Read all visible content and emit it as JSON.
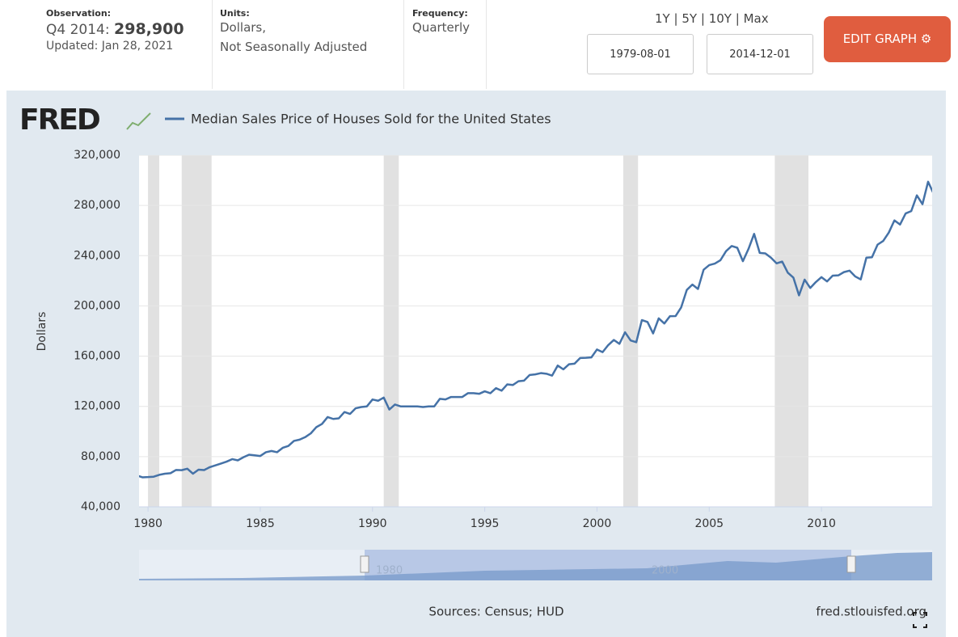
{
  "header": {
    "observation": {
      "label": "Observation:",
      "period": "Q4 2014:",
      "value": "298,900",
      "updated": "Updated: Jan 28, 2021"
    },
    "units": {
      "label": "Units:",
      "lines": [
        "Dollars,",
        "Not Seasonally Adjusted"
      ]
    },
    "frequency": {
      "label": "Frequency:",
      "value": "Quarterly"
    },
    "ranges": [
      "1Y",
      "5Y",
      "10Y",
      "Max"
    ],
    "separator": "|",
    "start_date": "1979-08-01",
    "end_date": "2014-12-01",
    "edit_button": "EDIT GRAPH"
  },
  "logo": "FRED",
  "chart_data": {
    "type": "line",
    "ylabel": "Dollars",
    "color": "#4572a7",
    "grid": true,
    "xlim": [
      1979.6,
      2014.93
    ],
    "xticks": [
      1980,
      1985,
      1990,
      1995,
      2000,
      2005,
      2010
    ],
    "ylim": [
      40000,
      320000
    ],
    "yticks": [
      {
        "value": 40000,
        "label": "40,000"
      },
      {
        "value": 80000,
        "label": "80,000"
      },
      {
        "value": 120000,
        "label": "120,000"
      },
      {
        "value": 160000,
        "label": "160,000"
      },
      {
        "value": 200000,
        "label": "200,000"
      },
      {
        "value": 240000,
        "label": "240,000"
      },
      {
        "value": 280000,
        "label": "280,000"
      },
      {
        "value": 320000,
        "label": "320,000"
      }
    ],
    "recessions": [
      [
        1980.0,
        1980.5
      ],
      [
        1981.5,
        1982.83
      ],
      [
        1990.5,
        1991.17
      ],
      [
        2001.17,
        2001.83
      ],
      [
        2007.92,
        2009.42
      ]
    ],
    "x": [
      1979.5,
      1979.75,
      1980,
      1980.25,
      1980.5,
      1980.75,
      1981,
      1981.25,
      1981.5,
      1981.75,
      1982,
      1982.25,
      1982.5,
      1982.75,
      1983,
      1983.25,
      1983.5,
      1983.75,
      1984,
      1984.25,
      1984.5,
      1984.75,
      1985,
      1985.25,
      1985.5,
      1985.75,
      1986,
      1986.25,
      1986.5,
      1986.75,
      1987,
      1987.25,
      1987.5,
      1987.75,
      1988,
      1988.25,
      1988.5,
      1988.75,
      1989,
      1989.25,
      1989.5,
      1989.75,
      1990,
      1990.25,
      1990.5,
      1990.75,
      1991,
      1991.25,
      1991.5,
      1991.75,
      1992,
      1992.25,
      1992.5,
      1992.75,
      1993,
      1993.25,
      1993.5,
      1993.75,
      1994,
      1994.25,
      1994.5,
      1994.75,
      1995,
      1995.25,
      1995.5,
      1995.75,
      1996,
      1996.25,
      1996.5,
      1996.75,
      1997,
      1997.25,
      1997.5,
      1997.75,
      1998,
      1998.25,
      1998.5,
      1998.75,
      1999,
      1999.25,
      1999.5,
      1999.75,
      2000,
      2000.25,
      2000.5,
      2000.75,
      2001,
      2001.25,
      2001.5,
      2001.75,
      2002,
      2002.25,
      2002.5,
      2002.75,
      2003,
      2003.25,
      2003.5,
      2003.75,
      2004,
      2004.25,
      2004.5,
      2004.75,
      2005,
      2005.25,
      2005.5,
      2005.75,
      2006,
      2006.25,
      2006.5,
      2006.75,
      2007,
      2007.25,
      2007.5,
      2007.75,
      2008,
      2008.25,
      2008.5,
      2008.75,
      2009,
      2009.25,
      2009.5,
      2009.75,
      2010,
      2010.25,
      2010.5,
      2010.75,
      2011,
      2011.25,
      2011.5,
      2011.75,
      2012,
      2012.25,
      2012.5,
      2012.75,
      2013,
      2013.25,
      2013.5,
      2013.75,
      2014,
      2014.25,
      2014.5,
      2014.75,
      2015
    ],
    "series": [
      {
        "name": "Median Sales Price of Houses Sold for the United States",
        "color": "#4572a7",
        "values": [
          65000,
          63500,
          63700,
          64000,
          65500,
          66400,
          66800,
          69400,
          69200,
          70400,
          66400,
          69600,
          69300,
          71600,
          73000,
          74500,
          76000,
          78000,
          77000,
          79500,
          81500,
          81000,
          80500,
          83500,
          84500,
          83500,
          87000,
          88500,
          92500,
          93500,
          95500,
          98500,
          103500,
          106000,
          111500,
          110000,
          110500,
          115500,
          114000,
          118500,
          119500,
          120000,
          125500,
          124500,
          127000,
          117500,
          121500,
          120000,
          120000,
          120000,
          120000,
          119500,
          120000,
          120000,
          126000,
          125500,
          127500,
          127500,
          127500,
          130500,
          130500,
          130000,
          132000,
          130500,
          134500,
          132500,
          137500,
          137000,
          140000,
          140500,
          145000,
          145500,
          146500,
          146000,
          144500,
          152500,
          149500,
          153500,
          154000,
          158500,
          158700,
          159000,
          165300,
          163200,
          168800,
          172900,
          169800,
          179000,
          172500,
          171100,
          188700,
          187200,
          178100,
          190100,
          186000,
          191800,
          191900,
          198800,
          212700,
          217000,
          213500,
          228800,
          232500,
          233700,
          236400,
          243600,
          247700,
          246300,
          235600,
          245400,
          257400,
          242200,
          241800,
          238400,
          233900,
          235300,
          226500,
          222500,
          208400,
          220900,
          214300,
          219000,
          222900,
          219500,
          224100,
          224300,
          226900,
          228100,
          223500,
          221100,
          238400,
          238700,
          248800,
          251700,
          258400,
          268100,
          264800,
          273600,
          275500,
          288000,
          281000,
          298900,
          289200
        ]
      }
    ]
  },
  "navigator": {
    "labels": [
      "1980",
      "2000"
    ]
  },
  "footer": {
    "sources": "Sources: Census; HUD",
    "site": "fred.stlouisfed.org"
  }
}
